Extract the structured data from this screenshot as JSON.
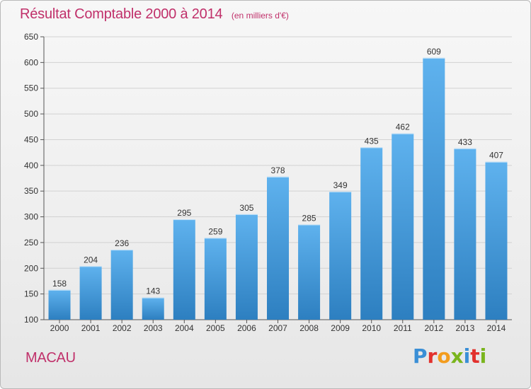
{
  "header": {
    "title": "Résultat Comptable 2000 à 2014",
    "subtitle": "(en milliers d'€)"
  },
  "footer": {
    "location": "MACAU",
    "brand": "Proxiti",
    "brand_colors": [
      "#3a8fd6",
      "#e2312d",
      "#f39c1d",
      "#7ab51d",
      "#3a8fd6",
      "#e2312d",
      "#7ab51d"
    ]
  },
  "colors": {
    "bar_top": "#5fb2ee",
    "bar_bottom": "#2d7fc0",
    "title": "#c0306a"
  },
  "chart_data": {
    "type": "bar",
    "title": "Résultat Comptable 2000 à 2014",
    "subtitle": "(en milliers d'€)",
    "categories": [
      "2000",
      "2001",
      "2002",
      "2003",
      "2004",
      "2005",
      "2006",
      "2007",
      "2008",
      "2009",
      "2010",
      "2011",
      "2012",
      "2013",
      "2014"
    ],
    "values": [
      158,
      204,
      236,
      143,
      295,
      259,
      305,
      378,
      285,
      349,
      435,
      462,
      609,
      433,
      407
    ],
    "data_labels": [
      "158",
      "204",
      "236",
      "143",
      "295",
      "259",
      "305",
      "378",
      "285",
      "349",
      "435",
      "462",
      "609",
      "433",
      "407"
    ],
    "ylim": [
      100,
      650
    ],
    "yticks": [
      100,
      150,
      200,
      250,
      300,
      350,
      400,
      450,
      500,
      550,
      600,
      650
    ],
    "ytick_labels": [
      "100",
      "150",
      "200",
      "250",
      "300",
      "350",
      "400",
      "450",
      "500",
      "550",
      "600",
      "650"
    ],
    "grid": true,
    "legend": "none"
  }
}
